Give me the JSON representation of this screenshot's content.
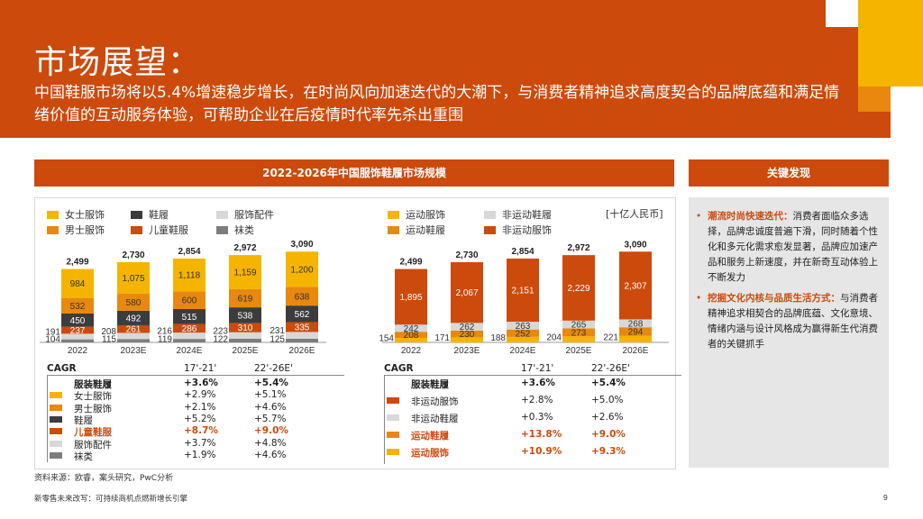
{
  "header": {
    "title": "市场展望：",
    "subtitle": "中国鞋服市场将以5.4%增速稳步增长，在时尚风向加速迭代的大潮下，与消费者精神追求高度契合的品牌底蕴和满足情绪价值的互动服务体验，可帮助企业在后疫情时代率先杀出重围"
  },
  "colors": {
    "brand": "#cc4a0c",
    "womens": "#f5b400",
    "mens": "#e8880f",
    "shoes": "#3c3c3c",
    "kids": "#cc4a0c",
    "accessories": "#d8d8d8",
    "socks": "#7d7d7d",
    "sports_apparel": "#f5b400",
    "sports_shoes": "#e8880f",
    "nonsports_shoes": "#d8d8d8",
    "nonsports_apparel": "#cc4a0c"
  },
  "main_panel": {
    "title": "2022-2026年中国服饰鞋履市场规模",
    "unit": "[十亿人民币]"
  },
  "side_panel": {
    "title": "关键发现",
    "items": [
      {
        "heading": "潮流时尚快速迭代：",
        "text": "消费者面临众多选择，品牌忠诚度普遍下滑，同时随着个性化和多元化需求愈发显著，品牌应加速产品和服务上新速度，并在新奇互动体验上不断发力"
      },
      {
        "heading": "挖掘文化内核与品质生活方式：",
        "text": "与消费者精神追求相契合的品牌底蕴、文化意境、情绪内涵与设计风格成为赢得新生代消费者的关键抓手"
      }
    ]
  },
  "chart_data": [
    {
      "type": "bar",
      "stacked": true,
      "categories": [
        "2022",
        "2023E",
        "2024E",
        "2025E",
        "2026E"
      ],
      "series": [
        {
          "name": "袜类",
          "key": "socks",
          "values": [
            104,
            115,
            119,
            122,
            125
          ]
        },
        {
          "name": "服饰配件",
          "key": "accessories",
          "values": [
            191,
            208,
            216,
            223,
            231
          ]
        },
        {
          "name": "儿童鞋服",
          "key": "kids",
          "values": [
            237,
            261,
            286,
            310,
            335
          ]
        },
        {
          "name": "鞋履",
          "key": "shoes",
          "values": [
            450,
            492,
            515,
            538,
            562
          ]
        },
        {
          "name": "男士服饰",
          "key": "mens",
          "values": [
            532,
            580,
            600,
            619,
            638
          ]
        },
        {
          "name": "女士服饰",
          "key": "womens",
          "values": [
            984,
            1075,
            1118,
            1159,
            1200
          ]
        }
      ],
      "totals": [
        "2,499",
        "2,730",
        "2,854",
        "2,972",
        "3,090"
      ],
      "legend": [
        "女士服饰",
        "鞋履",
        "服饰配件",
        "男士服饰",
        "儿童鞋服",
        "袜类"
      ]
    },
    {
      "type": "bar",
      "stacked": true,
      "categories": [
        "2022",
        "2023E",
        "2024E",
        "2025E",
        "2026E"
      ],
      "series": [
        {
          "name": "运动服饰",
          "key": "sports_apparel",
          "values": [
            154,
            171,
            188,
            204,
            221
          ]
        },
        {
          "name": "运动鞋履",
          "key": "sports_shoes",
          "values": [
            208,
            230,
            252,
            273,
            294
          ]
        },
        {
          "name": "非运动鞋履",
          "key": "nonsports_shoes",
          "values": [
            242,
            262,
            263,
            265,
            268
          ]
        },
        {
          "name": "非运动服饰",
          "key": "nonsports_apparel",
          "values": [
            1895,
            2067,
            2151,
            2229,
            2307
          ]
        }
      ],
      "totals": [
        "2,499",
        "2,730",
        "2,854",
        "2,972",
        "3,090"
      ],
      "legend": [
        "运动服饰",
        "非运动鞋履",
        "运动鞋履",
        "非运动服饰"
      ]
    }
  ],
  "cagr_left": {
    "label": "CAGR",
    "col1": "17'-21'",
    "col2": "22'-26E'",
    "rows": [
      {
        "name": "服装鞋履",
        "key": "",
        "v1": "+3.6%",
        "v2": "+5.4%",
        "style": "bold"
      },
      {
        "name": "女士服饰",
        "key": "womens",
        "v1": "+2.9%",
        "v2": "+5.1%",
        "style": ""
      },
      {
        "name": "男士服饰",
        "key": "mens",
        "v1": "+2.1%",
        "v2": "+4.6%",
        "style": ""
      },
      {
        "name": "鞋履",
        "key": "shoes",
        "v1": "+5.2%",
        "v2": "+5.7%",
        "style": ""
      },
      {
        "name": "儿童鞋服",
        "key": "kids",
        "v1": "+8.7%",
        "v2": "+9.0%",
        "style": "hl"
      },
      {
        "name": "服饰配件",
        "key": "accessories",
        "v1": "+3.7%",
        "v2": "+4.8%",
        "style": ""
      },
      {
        "name": "袜类",
        "key": "socks",
        "v1": "+1.9%",
        "v2": "+4.6%",
        "style": ""
      }
    ]
  },
  "cagr_right": {
    "label": "CAGR",
    "col1": "17'-21'",
    "col2": "22'-26E'",
    "rows": [
      {
        "name": "服装鞋履",
        "key": "",
        "v1": "+3.6%",
        "v2": "+5.4%",
        "style": "bold"
      },
      {
        "name": "非运动服饰",
        "key": "nonsports_apparel",
        "v1": "+2.8%",
        "v2": "+5.0%",
        "style": ""
      },
      {
        "name": "非运动鞋履",
        "key": "nonsports_shoes",
        "v1": "+0.3%",
        "v2": "+2.6%",
        "style": ""
      },
      {
        "name": "运动鞋履",
        "key": "sports_shoes",
        "v1": "+13.8%",
        "v2": "+9.0%",
        "style": "hl"
      },
      {
        "name": "运动服饰",
        "key": "sports_apparel",
        "v1": "+10.9%",
        "v2": "+9.3%",
        "style": "hl"
      }
    ]
  },
  "source": "资料来源：欧睿，案头研究，PwC分析",
  "footer": "新零售未来改写：可持续商机点燃新增长引擎",
  "page_number": "9"
}
